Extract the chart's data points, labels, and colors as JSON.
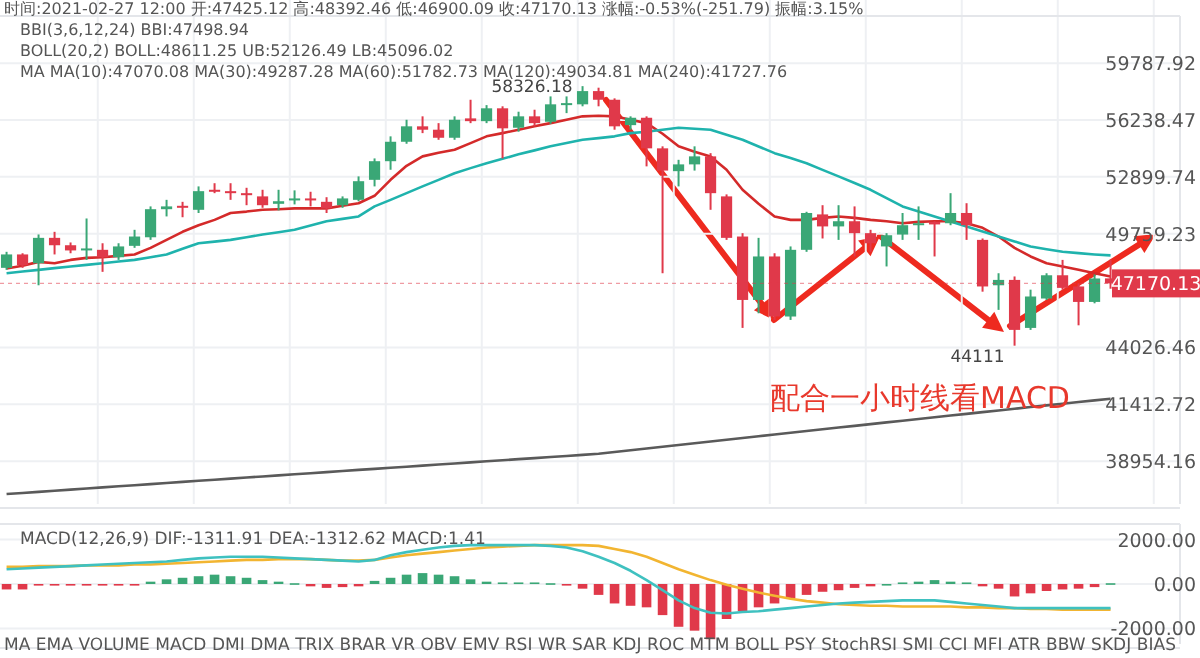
{
  "chart_data": [
    {
      "type": "candlestick",
      "log": "y",
      "grid": true,
      "categories": [
        null,
        null,
        null,
        null,
        null,
        null,
        null,
        null,
        null,
        null,
        null,
        null,
        null,
        null,
        null,
        null,
        null,
        null,
        null,
        null,
        null,
        null,
        null,
        null,
        null,
        null,
        null,
        null,
        null,
        null,
        null,
        null,
        null,
        null,
        null,
        null,
        null,
        null,
        null,
        null,
        null,
        null,
        null,
        null,
        null,
        null,
        null,
        null,
        null,
        null,
        null,
        null,
        null,
        null,
        null,
        null,
        null,
        null,
        null,
        null,
        null,
        null,
        null,
        null,
        null,
        null,
        null,
        null,
        null,
        null
      ],
      "ohlc": [
        [
          47966,
          48800,
          47863,
          48663
        ],
        [
          48663,
          48725,
          47966,
          48100
        ],
        [
          48203,
          49720,
          47074,
          49539
        ],
        [
          49539,
          49862,
          48663,
          49147
        ],
        [
          49147,
          49294,
          48725,
          48873
        ],
        [
          48873,
          50583,
          48378,
          48978
        ],
        [
          48905,
          49252,
          47760,
          48516
        ],
        [
          48516,
          49252,
          48378,
          49084
        ],
        [
          49115,
          49970,
          49010,
          49610
        ],
        [
          49570,
          51245,
          49431,
          51091
        ],
        [
          51091,
          51608,
          50695,
          51245
        ],
        [
          51278,
          51498,
          50651,
          51168
        ],
        [
          51058,
          52360,
          50883,
          52092
        ],
        [
          52170,
          52540,
          51980,
          52058
        ],
        [
          52092,
          52540,
          51608,
          51980
        ],
        [
          51980,
          52282,
          51311,
          51867
        ],
        [
          51800,
          52170,
          51168,
          51311
        ],
        [
          51388,
          52170,
          51025,
          51531
        ],
        [
          51575,
          52137,
          51355,
          51687
        ],
        [
          51687,
          52058,
          51245,
          51575
        ],
        [
          51498,
          51755,
          50883,
          51135
        ],
        [
          51311,
          51800,
          51168,
          51687
        ],
        [
          51608,
          52927,
          51531,
          52654
        ],
        [
          52732,
          53961,
          52360,
          53800
        ],
        [
          53800,
          55258,
          53306,
          54937
        ],
        [
          54937,
          56253,
          54819,
          55857
        ],
        [
          55857,
          56461,
          55450,
          55654
        ],
        [
          55654,
          56049,
          55054,
          55174
        ],
        [
          55174,
          56461,
          55054,
          56253
        ],
        [
          56337,
          57478,
          56049,
          56169
        ],
        [
          56169,
          57147,
          56049,
          56951
        ],
        [
          56951,
          57074,
          53961,
          55737
        ],
        [
          55773,
          56743,
          55534,
          56461
        ],
        [
          56461,
          56865,
          55857,
          56049
        ],
        [
          56133,
          57686,
          56013,
          57196
        ],
        [
          57147,
          57686,
          56657,
          57270
        ],
        [
          57196,
          58326.18,
          57074,
          58016
        ],
        [
          58016,
          58229,
          57074,
          57478
        ],
        [
          57478,
          57564,
          55654,
          55857
        ],
        [
          55929,
          56461,
          55654,
          56375
        ],
        [
          56375,
          56461,
          53501,
          54549
        ],
        [
          54549,
          54667,
          47688,
          53259
        ],
        [
          53226,
          53880,
          52360,
          53616
        ],
        [
          53616,
          54667,
          53259,
          54080
        ],
        [
          54080,
          54268,
          51058,
          51980
        ],
        [
          51800,
          51912,
          49431,
          49539
        ],
        [
          49610,
          49790,
          44963,
          46337
        ],
        [
          46337,
          49539,
          45676,
          48557
        ],
        [
          48557,
          48725,
          45350,
          45518
        ],
        [
          45518,
          49084,
          45350,
          48905
        ],
        [
          48905,
          50948,
          48800,
          50883
        ],
        [
          50805,
          51311,
          49506,
          50153
        ],
        [
          50153,
          51311,
          49431,
          50433
        ],
        [
          50433,
          51245,
          48557,
          49790
        ],
        [
          49790,
          49970,
          48800,
          49252
        ],
        [
          49084,
          49790,
          48038,
          49679
        ],
        [
          49716,
          50883,
          49431,
          50218
        ],
        [
          50218,
          51245,
          49431,
          50325
        ],
        [
          50400,
          50433,
          48557,
          50260
        ],
        [
          50325,
          51980,
          50218,
          50883
        ],
        [
          50883,
          51421,
          49431,
          50218
        ],
        [
          49431,
          49506,
          46751,
          47014
        ],
        [
          47074,
          47688,
          45844,
          47347
        ],
        [
          47347,
          47523,
          44111,
          44867
        ],
        [
          44963,
          46852,
          44867,
          46509
        ],
        [
          46408,
          47688,
          46337,
          47584
        ],
        [
          47584,
          48378,
          46852,
          46943
        ],
        [
          47014,
          47175,
          45089,
          46238
        ],
        [
          46238,
          47627,
          46169,
          47420
        ],
        [
          47425.12,
          48392.46,
          46900.09,
          47170.13
        ]
      ],
      "series": [
        {
          "type": "line",
          "color": "#d42a2a",
          "values": [
            47935,
            48069,
            48275,
            48203,
            48378,
            48484,
            48515,
            48589,
            48663,
            49010,
            49431,
            49862,
            50217,
            50508,
            50883,
            50960,
            51058,
            51091,
            51135,
            51135,
            51135,
            51278,
            51421,
            51833,
            52732,
            53536,
            54080,
            54291,
            54467,
            54855,
            55258,
            55450,
            55654,
            55857,
            56049,
            56253,
            56461,
            56498,
            56461,
            56253,
            56049,
            55414,
            54667,
            54350,
            54080,
            53306,
            52170,
            51388,
            50695,
            50508,
            50508,
            50618,
            50695,
            50618,
            50508,
            50433,
            50325,
            50400,
            50433,
            50433,
            50325,
            50077,
            49610,
            49010,
            48557,
            48203,
            48038,
            47863,
            47688,
            47523
          ]
        },
        {
          "type": "line",
          "color": "#1fb3ad",
          "values": [
            47688,
            47775,
            47863,
            47950,
            48038,
            48120,
            48203,
            48290,
            48378,
            48520,
            48663,
            48960,
            49252,
            49340,
            49431,
            49570,
            49716,
            49840,
            49970,
            50200,
            50433,
            50560,
            50695,
            51245,
            51608,
            51980,
            52360,
            52730,
            53109,
            53400,
            53685,
            53940,
            54197,
            54430,
            54667,
            54860,
            55054,
            55150,
            55258,
            55450,
            55534,
            55650,
            55773,
            55710,
            55654,
            55350,
            55054,
            54660,
            54268,
            53980,
            53685,
            53300,
            52927,
            52550,
            52170,
            51700,
            51245,
            50970,
            50695,
            50420,
            50153,
            49880,
            49610,
            49350,
            49084,
            48940,
            48800,
            48730,
            48663,
            48611.25
          ]
        },
        {
          "type": "line",
          "color": "#5a5a5a",
          "values": [
            37600,
            37645,
            37690,
            37735,
            37780,
            37825,
            37870,
            37915,
            37960,
            38005,
            38050,
            38095,
            38140,
            38185,
            38230,
            38275,
            38320,
            38365,
            38410,
            38455,
            38500,
            38545,
            38590,
            38635,
            38680,
            38725,
            38770,
            38815,
            38860,
            38905,
            38950,
            38995,
            39040,
            39085,
            39130,
            39175,
            39220,
            39265,
            39340,
            39415,
            39490,
            39565,
            39640,
            39715,
            39790,
            39865,
            39940,
            40015,
            40090,
            40165,
            40240,
            40315,
            40390,
            40465,
            40540,
            40615,
            40690,
            40765,
            40840,
            40915,
            40990,
            41065,
            41140,
            41215,
            41290,
            41365,
            41440,
            41515,
            41590,
            41665
          ]
        }
      ],
      "ylim": [
        37200,
        62900
      ],
      "yticks": [
        {
          "value": 59787.92,
          "label": "59787.92"
        },
        {
          "value": 56238.47,
          "label": "56238.47"
        },
        {
          "value": 52899.74,
          "label": "52899.74"
        },
        {
          "value": 49759.23,
          "label": "49759.23"
        },
        {
          "value": 44026.46,
          "label": "44026.46"
        },
        {
          "value": 41412.72,
          "label": "41412.72"
        },
        {
          "value": 38954.16,
          "label": "38954.16"
        }
      ],
      "ref_lines": [
        {
          "axis": "y",
          "value": 47170.13,
          "label": "47170.13",
          "color": "#e0394a"
        }
      ],
      "annotations": [
        "时间:2021-02-27 12:00 开:47425.12 高:48392.46 低:46900.09 收:47170.13 涨幅:-0.53%(-251.79) 振幅:3.15%",
        "BBI(3,6,12,24) BBI:47498.94",
        "BOLL(20,2) BOLL:48611.25 UB:52126.49 LB:45096.02",
        "MA MA(10):47070.08 MA(30):49287.28 MA(60):51782.73 MA(120):49034.81 MA(240):41727.76",
        "配合一小时线看MACD",
        "58326.18",
        "44111"
      ]
    },
    {
      "type": "bar",
      "grid": "y",
      "categories": [
        null,
        null,
        null,
        null,
        null,
        null,
        null,
        null,
        null,
        null,
        null,
        null,
        null,
        null,
        null,
        null,
        null,
        null,
        null,
        null,
        null,
        null,
        null,
        null,
        null,
        null,
        null,
        null,
        null,
        null,
        null,
        null,
        null,
        null,
        null,
        null,
        null,
        null,
        null,
        null,
        null,
        null,
        null,
        null,
        null,
        null,
        null,
        null,
        null,
        null,
        null,
        null,
        null,
        null,
        null,
        null,
        null,
        null,
        null,
        null,
        null,
        null,
        null,
        null,
        null,
        null,
        null,
        null,
        null,
        null
      ],
      "series": [
        {
          "type": "bar",
          "values": [
            -245,
            -245,
            -70,
            -70,
            -70,
            -70,
            -70,
            -70,
            -70,
            105,
            210,
            280,
            350,
            420,
            350,
            280,
            175,
            105,
            35,
            -105,
            -175,
            -140,
            -105,
            140,
            280,
            420,
            490,
            420,
            350,
            210,
            105,
            70,
            70,
            70,
            35,
            -70,
            -210,
            -490,
            -875,
            -980,
            -1050,
            -1400,
            -1925,
            -2100,
            -2485,
            -1575,
            -1225,
            -1050,
            -875,
            -630,
            -490,
            -350,
            -280,
            -175,
            -105,
            0,
            70,
            105,
            175,
            105,
            70,
            -105,
            -210,
            -560,
            -420,
            -315,
            -245,
            -210,
            -140,
            35
          ],
          "colors": [
            "#e0394a",
            "#e0394a",
            "#e0394a",
            "#e0394a",
            "#e0394a",
            "#e0394a",
            "#e0394a",
            "#e0394a",
            "#e0394a",
            "#3aa776",
            "#3aa776",
            "#3aa776",
            "#3aa776",
            "#3aa776",
            "#3aa776",
            "#3aa776",
            "#3aa776",
            "#3aa776",
            "#3aa776",
            "#e0394a",
            "#e0394a",
            "#e0394a",
            "#e0394a",
            "#3aa776",
            "#3aa776",
            "#3aa776",
            "#3aa776",
            "#3aa776",
            "#3aa776",
            "#3aa776",
            "#3aa776",
            "#3aa776",
            "#3aa776",
            "#3aa776",
            "#3aa776",
            "#e0394a",
            "#e0394a",
            "#e0394a",
            "#e0394a",
            "#e0394a",
            "#e0394a",
            "#e0394a",
            "#e0394a",
            "#e0394a",
            "#e0394a",
            "#e0394a",
            "#e0394a",
            "#e0394a",
            "#e0394a",
            "#e0394a",
            "#e0394a",
            "#e0394a",
            "#e0394a",
            "#e0394a",
            "#e0394a",
            "#3aa776",
            "#3aa776",
            "#3aa776",
            "#3aa776",
            "#3aa776",
            "#3aa776",
            "#e0394a",
            "#e0394a",
            "#e0394a",
            "#e0394a",
            "#e0394a",
            "#e0394a",
            "#e0394a",
            "#e0394a",
            "#3aa776"
          ]
        },
        {
          "type": "line",
          "color": "#f2b531",
          "values": [
            770,
            770,
            805,
            805,
            805,
            840,
            840,
            840,
            875,
            875,
            910,
            945,
            980,
            1015,
            1050,
            1085,
            1085,
            1120,
            1120,
            1120,
            1085,
            1050,
            1050,
            1085,
            1190,
            1295,
            1365,
            1435,
            1505,
            1575,
            1645,
            1680,
            1715,
            1750,
            1750,
            1750,
            1750,
            1715,
            1575,
            1435,
            1225,
            945,
            665,
            420,
            175,
            -35,
            -210,
            -385,
            -525,
            -665,
            -770,
            -840,
            -910,
            -945,
            -980,
            -980,
            -1015,
            -1015,
            -1015,
            -1015,
            -1050,
            -1050,
            -1085,
            -1085,
            -1120,
            -1120,
            -1155,
            -1155,
            -1155,
            -1155
          ]
        },
        {
          "type": "line",
          "color": "#3fc1c0",
          "values": [
            665,
            700,
            735,
            770,
            805,
            840,
            875,
            910,
            945,
            980,
            1015,
            1085,
            1155,
            1190,
            1225,
            1225,
            1225,
            1190,
            1155,
            1120,
            1085,
            1050,
            1015,
            1085,
            1295,
            1435,
            1540,
            1645,
            1715,
            1750,
            1750,
            1750,
            1750,
            1750,
            1715,
            1645,
            1470,
            1225,
            945,
            595,
            175,
            -280,
            -735,
            -1085,
            -1295,
            -1330,
            -1260,
            -1225,
            -1155,
            -1085,
            -1015,
            -945,
            -875,
            -840,
            -805,
            -770,
            -735,
            -735,
            -735,
            -805,
            -875,
            -945,
            -1015,
            -1085,
            -1085,
            -1085,
            -1085,
            -1085,
            -1085,
            -1085
          ]
        }
      ],
      "ylim": [
        -2700,
        2700
      ],
      "yticks": [
        {
          "value": 2000,
          "label": "2000.00"
        },
        {
          "value": 0,
          "label": "0.00"
        },
        {
          "value": -2000,
          "label": "-2000.00"
        }
      ],
      "annotations": [
        "MACD(12,26,9)  DIF:-1311.91  DEA:-1312.62  MACD:1.41",
        "MA EMA VOLUME MACD DMI DMA TRIX BRAR VR OBV EMV RSI WR SAR KDJ ROC MTM BOLL PSY StochRSI SMI CCI MFI ATR BBW SKDJ BIAS"
      ]
    }
  ]
}
